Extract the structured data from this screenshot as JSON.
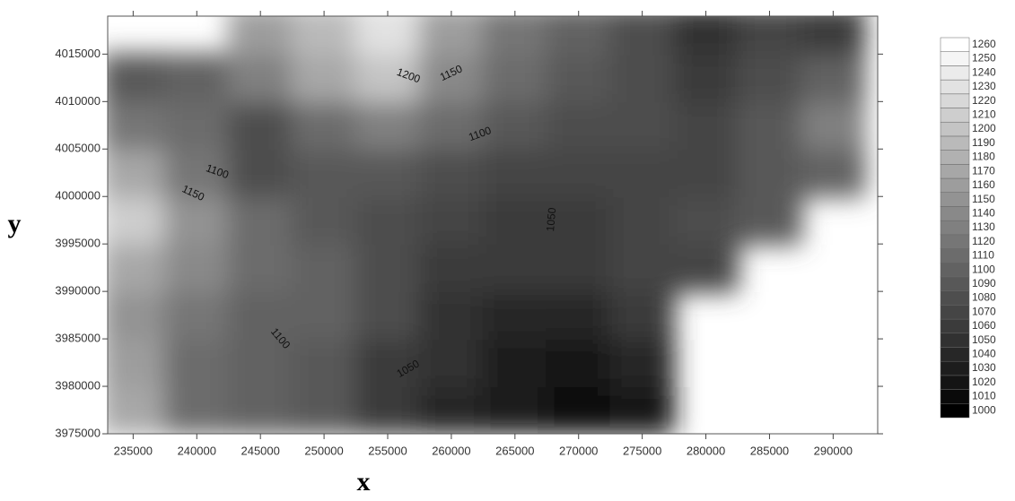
{
  "chart_data": {
    "type": "contour",
    "x_label": "x",
    "y_label": "y",
    "x": [
      235000,
      240000,
      245000,
      250000,
      255000,
      260000,
      265000,
      270000,
      275000,
      280000,
      285000,
      290000
    ],
    "y": [
      3977500,
      3982500,
      3987500,
      3992500,
      3997500,
      4002500,
      4007500,
      4012500,
      4017500
    ],
    "z": [
      [
        1170,
        1110,
        1100,
        1090,
        1060,
        1040,
        1030,
        1010,
        1020,
        null,
        null,
        null
      ],
      [
        1160,
        1110,
        1100,
        1090,
        1060,
        1050,
        1030,
        1020,
        1040,
        null,
        null,
        null
      ],
      [
        1150,
        1120,
        1100,
        1100,
        1080,
        1050,
        1040,
        1040,
        1060,
        null,
        null,
        null
      ],
      [
        1170,
        1140,
        1110,
        1100,
        1080,
        1060,
        1060,
        1060,
        1070,
        1070,
        null,
        null
      ],
      [
        1210,
        1150,
        1110,
        1090,
        1080,
        1070,
        1060,
        1060,
        1070,
        1080,
        1090,
        null
      ],
      [
        1170,
        1120,
        1080,
        1090,
        1090,
        1080,
        1070,
        1070,
        1070,
        1070,
        1090,
        1100
      ],
      [
        1120,
        1110,
        1080,
        1110,
        1130,
        1110,
        1090,
        1080,
        1080,
        1070,
        1090,
        1130
      ],
      [
        1090,
        1100,
        1130,
        1170,
        1200,
        1140,
        1110,
        1090,
        1080,
        1060,
        1080,
        1100
      ],
      [
        null,
        null,
        1160,
        1190,
        1230,
        1160,
        1120,
        1100,
        1080,
        1050,
        1070,
        1060
      ]
    ],
    "xlim": [
      233000,
      293500
    ],
    "ylim": [
      3975000,
      4019000
    ],
    "xticks": [
      235000,
      240000,
      245000,
      250000,
      255000,
      260000,
      265000,
      270000,
      275000,
      280000,
      285000,
      290000
    ],
    "yticks": [
      3975000,
      3980000,
      3985000,
      3990000,
      3995000,
      4000000,
      4005000,
      4010000,
      4015000
    ],
    "levels": [
      1000,
      1010,
      1020,
      1030,
      1040,
      1050,
      1060,
      1070,
      1080,
      1090,
      1100,
      1110,
      1120,
      1130,
      1140,
      1150,
      1160,
      1170,
      1180,
      1190,
      1200,
      1210,
      1220,
      1230,
      1240,
      1250,
      1260
    ],
    "contour_labels": [
      1200,
      1150,
      1100,
      1100,
      1150,
      1050,
      1100,
      1050
    ],
    "colormap": [
      "#000000",
      "#ffffff"
    ]
  }
}
